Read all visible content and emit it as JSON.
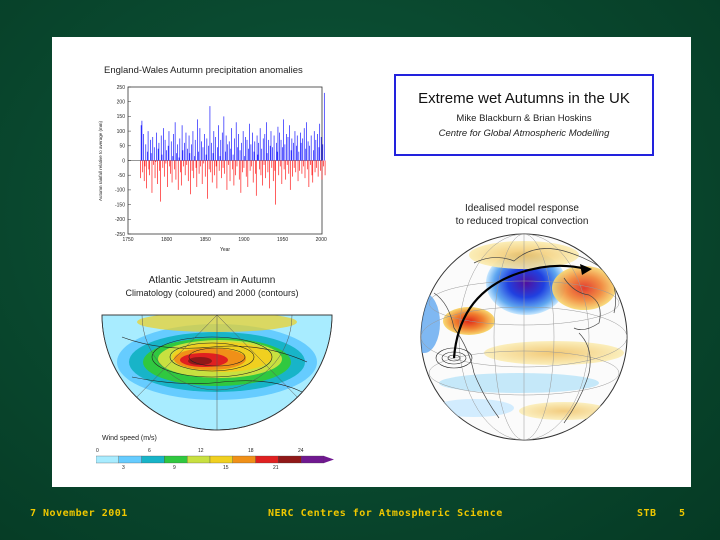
{
  "footer": {
    "date": "7 November 2001",
    "centre": "NERC Centres for Atmospheric Science",
    "initials": "STB",
    "page": "5"
  },
  "title_box": {
    "title": "Extreme wet Autumns in the UK",
    "authors": "Mike Blackburn & Brian Hoskins",
    "group": "Centre for Global Atmospheric Modelling"
  },
  "precip_chart": {
    "title": "England-Wales Autumn precipitation anomalies",
    "ylabel": "Autumn rainfall relative to average (mm)",
    "xlabel": "Year",
    "y_ticks": [
      "250",
      "200",
      "150",
      "100",
      "50",
      "0",
      "-50",
      "-100",
      "-150",
      "-200",
      "-250"
    ],
    "x_ticks": [
      "1750",
      "1800",
      "1850",
      "1900",
      "1950",
      "2000"
    ]
  },
  "chart_data": {
    "type": "bar",
    "title": "England-Wales Autumn precipitation anomalies",
    "xlabel": "Year",
    "ylabel": "Autumn rainfall relative to average (mm)",
    "xlim": [
      1750,
      2001
    ],
    "ylim": [
      -250,
      250
    ],
    "x_start": 1766,
    "values": [
      -60,
      120,
      135,
      -40,
      90,
      -70,
      -20,
      55,
      -95,
      30,
      100,
      -30,
      -50,
      70,
      25,
      -110,
      80,
      -15,
      45,
      -60,
      -5,
      95,
      -80,
      40,
      60,
      -35,
      -140,
      85,
      20,
      -25,
      110,
      -55,
      70,
      -10,
      35,
      -90,
      50,
      100,
      -20,
      -45,
      65,
      -75,
      15,
      90,
      -30,
      130,
      -65,
      25,
      55,
      -100,
      10,
      75,
      -40,
      -85,
      120,
      35,
      -20,
      60,
      -50,
      95,
      -15,
      40,
      -70,
      85,
      25,
      -115,
      55,
      -35,
      100,
      -60,
      15,
      70,
      -25,
      -90,
      140,
      30,
      -45,
      110,
      -20,
      65,
      -80,
      45,
      -10,
      90,
      -55,
      20,
      75,
      -130,
      50,
      -30,
      185,
      -40,
      60,
      -75,
      25,
      100,
      -50,
      80,
      -20,
      -95,
      45,
      120,
      -35,
      15,
      70,
      -60,
      95,
      -25,
      150,
      -45,
      30,
      85,
      -100,
      55,
      -15,
      65,
      -70,
      40,
      110,
      -30,
      20,
      -85,
      75,
      -50,
      130,
      -20,
      45,
      90,
      -65,
      35,
      -110,
      60,
      -40,
      100,
      -25,
      15,
      80,
      -55,
      70,
      -90,
      40,
      125,
      -35,
      55,
      -20,
      95,
      -75,
      30,
      65,
      -45,
      -120,
      85,
      20,
      60,
      -30,
      110,
      -50,
      40,
      -85,
      75,
      -15,
      90,
      -60,
      130,
      25,
      -40,
      70,
      -95,
      50,
      100,
      -25,
      45,
      -70,
      85,
      -35,
      -150,
      60,
      30,
      115,
      -50,
      95,
      -20,
      70,
      -80,
      45,
      140,
      -30,
      55,
      -65,
      90,
      -15,
      80,
      -45,
      120,
      -100,
      35,
      75,
      -55,
      60,
      -25,
      100,
      -40,
      50,
      85,
      -70,
      30,
      -35,
      95,
      60,
      -45,
      75,
      -20,
      110,
      -60,
      40,
      130,
      -30,
      65,
      -90,
      50,
      -15,
      85,
      -50,
      -75,
      35,
      100,
      -40,
      70,
      -25,
      90,
      -55,
      45,
      125,
      -35,
      80,
      -65,
      55,
      -20,
      230,
      -50
    ]
  },
  "jet_panel": {
    "title": "Atlantic Jetstream in Autumn",
    "subtitle": "Climatology (coloured) and 2000 (contours)",
    "legend_title": "Wind speed (m/s)",
    "legend_ticks_top": [
      "0",
      "6",
      "12",
      "18",
      "24"
    ],
    "legend_ticks_bottom": [
      "3",
      "9",
      "15",
      "21"
    ],
    "legend_colors": [
      "#a8ecff",
      "#66ccff",
      "#18b4c8",
      "#30c840",
      "#c8e040",
      "#f0d020",
      "#f09018",
      "#e02020",
      "#901818",
      "#701890"
    ]
  },
  "globe_panel": {
    "title_line1": "Idealised model response",
    "title_line2": "to reduced tropical convection"
  }
}
